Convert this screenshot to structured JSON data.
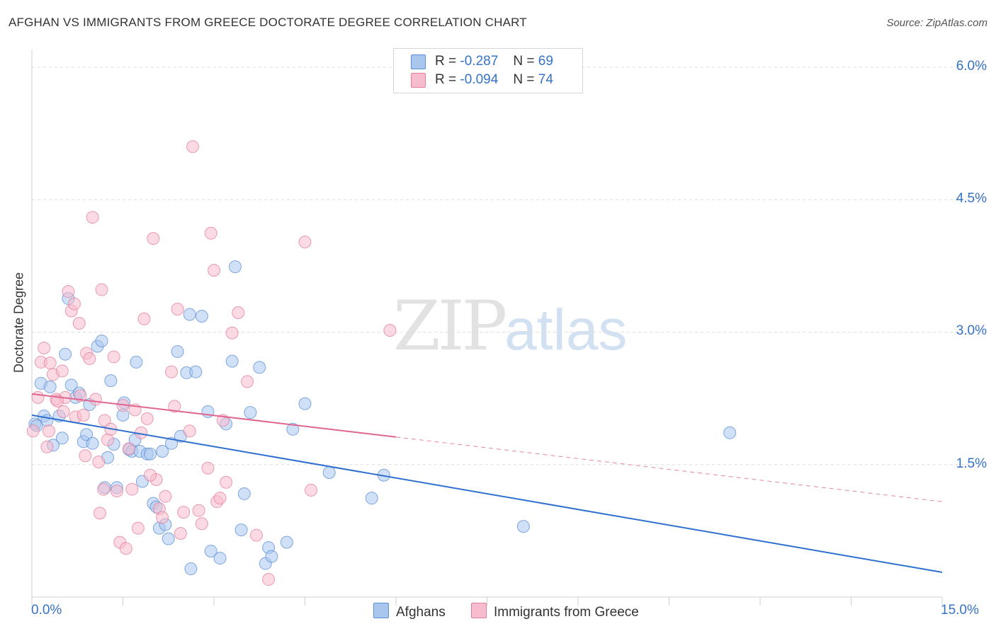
{
  "title": "AFGHAN VS IMMIGRANTS FROM GREECE DOCTORATE DEGREE CORRELATION CHART",
  "source": "Source: ZipAtlas.com",
  "watermark": {
    "zip": "ZIP",
    "atlas": "atlas"
  },
  "legend": {
    "r_label": "R =",
    "n_label": "N =",
    "rows": [
      {
        "r": "-0.287",
        "n": "69",
        "color": "#a9c6ee",
        "border": "#5b8ed6"
      },
      {
        "r": "-0.094",
        "n": "74",
        "color": "#f7bccd",
        "border": "#e27d9b"
      }
    ]
  },
  "bottom_legend": [
    "Afghans",
    "Immigrants from Greece"
  ],
  "chart_data": {
    "type": "scatter",
    "title": "AFGHAN VS IMMIGRANTS FROM GREECE DOCTORATE DEGREE CORRELATION CHART",
    "xlabel": "",
    "ylabel": "Doctorate Degree",
    "xlim": [
      0,
      15
    ],
    "ylim": [
      0,
      6.2
    ],
    "x_tick_labels": [
      "0.0%",
      "15.0%"
    ],
    "y_ticks": [
      1.5,
      3.0,
      4.5,
      6.0
    ],
    "y_tick_labels": [
      "1.5%",
      "3.0%",
      "4.5%",
      "6.0%"
    ],
    "grid": true,
    "series": [
      {
        "name": "Afghans",
        "color": "#5b8ed6",
        "fill": "#a9c6ee",
        "trend": {
          "x0": 0,
          "y0": 2.06,
          "x1": 15,
          "y1": 0.28,
          "dash_from": null
        },
        "points": [
          [
            0.05,
            1.96
          ],
          [
            0.08,
            1.94
          ],
          [
            0.15,
            2.42
          ],
          [
            0.2,
            2.05
          ],
          [
            0.25,
            2.0
          ],
          [
            0.3,
            2.38
          ],
          [
            0.35,
            1.72
          ],
          [
            0.45,
            2.05
          ],
          [
            0.5,
            1.8
          ],
          [
            0.55,
            2.75
          ],
          [
            0.6,
            3.38
          ],
          [
            0.65,
            2.4
          ],
          [
            0.72,
            2.26
          ],
          [
            0.78,
            2.31
          ],
          [
            0.85,
            1.76
          ],
          [
            0.9,
            1.84
          ],
          [
            0.95,
            2.18
          ],
          [
            1.0,
            1.74
          ],
          [
            1.08,
            2.84
          ],
          [
            1.15,
            2.9
          ],
          [
            1.2,
            1.24
          ],
          [
            1.25,
            1.58
          ],
          [
            1.3,
            2.45
          ],
          [
            1.35,
            1.73
          ],
          [
            1.4,
            1.24
          ],
          [
            1.5,
            2.06
          ],
          [
            1.52,
            2.2
          ],
          [
            1.6,
            1.67
          ],
          [
            1.65,
            1.65
          ],
          [
            1.7,
            1.78
          ],
          [
            1.72,
            2.66
          ],
          [
            1.78,
            1.65
          ],
          [
            1.82,
            1.31
          ],
          [
            1.9,
            1.62
          ],
          [
            1.95,
            1.62
          ],
          [
            2.0,
            1.06
          ],
          [
            2.05,
            1.02
          ],
          [
            2.1,
            0.78
          ],
          [
            2.15,
            1.65
          ],
          [
            2.2,
            0.82
          ],
          [
            2.25,
            0.66
          ],
          [
            2.3,
            1.74
          ],
          [
            2.4,
            2.78
          ],
          [
            2.45,
            1.82
          ],
          [
            2.55,
            2.54
          ],
          [
            2.6,
            3.2
          ],
          [
            2.62,
            0.32
          ],
          [
            2.7,
            2.55
          ],
          [
            2.8,
            3.18
          ],
          [
            2.9,
            2.1
          ],
          [
            2.95,
            0.52
          ],
          [
            3.1,
            0.44
          ],
          [
            3.2,
            1.96
          ],
          [
            3.3,
            2.67
          ],
          [
            3.35,
            3.74
          ],
          [
            3.45,
            0.76
          ],
          [
            3.5,
            1.17
          ],
          [
            3.6,
            2.09
          ],
          [
            3.75,
            2.6
          ],
          [
            3.85,
            0.38
          ],
          [
            3.9,
            0.56
          ],
          [
            3.95,
            0.46
          ],
          [
            4.2,
            0.62
          ],
          [
            4.3,
            1.9
          ],
          [
            4.5,
            2.19
          ],
          [
            4.9,
            1.41
          ],
          [
            5.6,
            1.12
          ],
          [
            5.8,
            1.38
          ],
          [
            8.1,
            0.8
          ],
          [
            11.5,
            1.86
          ]
        ]
      },
      {
        "name": "Immigrants from Greece",
        "color": "#e27d9b",
        "fill": "#f7bccd",
        "trend": {
          "x0": 0,
          "y0": 2.3,
          "x1": 15,
          "y1": 1.08,
          "dash_from": 6.0
        },
        "points": [
          [
            0.02,
            1.88
          ],
          [
            0.1,
            2.26
          ],
          [
            0.15,
            2.66
          ],
          [
            0.2,
            2.82
          ],
          [
            0.28,
            1.88
          ],
          [
            0.3,
            2.65
          ],
          [
            0.35,
            2.52
          ],
          [
            0.4,
            2.24
          ],
          [
            0.5,
            2.56
          ],
          [
            0.52,
            2.1
          ],
          [
            0.55,
            2.26
          ],
          [
            0.6,
            3.46
          ],
          [
            0.65,
            3.24
          ],
          [
            0.7,
            3.32
          ],
          [
            0.72,
            2.04
          ],
          [
            0.78,
            3.1
          ],
          [
            0.85,
            2.06
          ],
          [
            0.88,
            1.6
          ],
          [
            0.9,
            2.76
          ],
          [
            0.95,
            2.7
          ],
          [
            1.0,
            4.3
          ],
          [
            1.05,
            2.24
          ],
          [
            1.1,
            1.53
          ],
          [
            1.15,
            3.48
          ],
          [
            1.18,
            1.22
          ],
          [
            1.2,
            2.0
          ],
          [
            1.25,
            1.78
          ],
          [
            1.3,
            1.9
          ],
          [
            1.35,
            2.72
          ],
          [
            1.4,
            1.2
          ],
          [
            1.45,
            0.62
          ],
          [
            1.5,
            2.17
          ],
          [
            1.55,
            0.55
          ],
          [
            1.6,
            1.68
          ],
          [
            1.7,
            2.12
          ],
          [
            1.75,
            0.78
          ],
          [
            1.8,
            1.86
          ],
          [
            1.85,
            3.15
          ],
          [
            1.9,
            2.02
          ],
          [
            2.0,
            4.06
          ],
          [
            2.05,
            1.33
          ],
          [
            2.1,
            1.0
          ],
          [
            2.15,
            0.9
          ],
          [
            2.2,
            1.14
          ],
          [
            2.3,
            2.55
          ],
          [
            2.35,
            2.16
          ],
          [
            2.4,
            3.26
          ],
          [
            2.5,
            0.96
          ],
          [
            2.6,
            1.88
          ],
          [
            2.65,
            5.1
          ],
          [
            2.75,
            0.98
          ],
          [
            2.8,
            0.83
          ],
          [
            2.9,
            1.46
          ],
          [
            2.95,
            4.12
          ],
          [
            3.0,
            3.7
          ],
          [
            3.05,
            1.08
          ],
          [
            3.1,
            1.12
          ],
          [
            3.2,
            1.3
          ],
          [
            3.3,
            2.99
          ],
          [
            3.4,
            3.22
          ],
          [
            3.55,
            2.44
          ],
          [
            3.7,
            0.7
          ],
          [
            3.9,
            0.2
          ],
          [
            4.5,
            4.02
          ],
          [
            4.6,
            1.21
          ],
          [
            5.9,
            3.02
          ],
          [
            1.12,
            0.95
          ],
          [
            0.42,
            2.22
          ],
          [
            0.25,
            1.7
          ],
          [
            1.65,
            1.22
          ],
          [
            2.45,
            0.72
          ],
          [
            3.15,
            2.0
          ],
          [
            0.8,
            2.28
          ],
          [
            1.95,
            1.38
          ]
        ]
      }
    ]
  }
}
